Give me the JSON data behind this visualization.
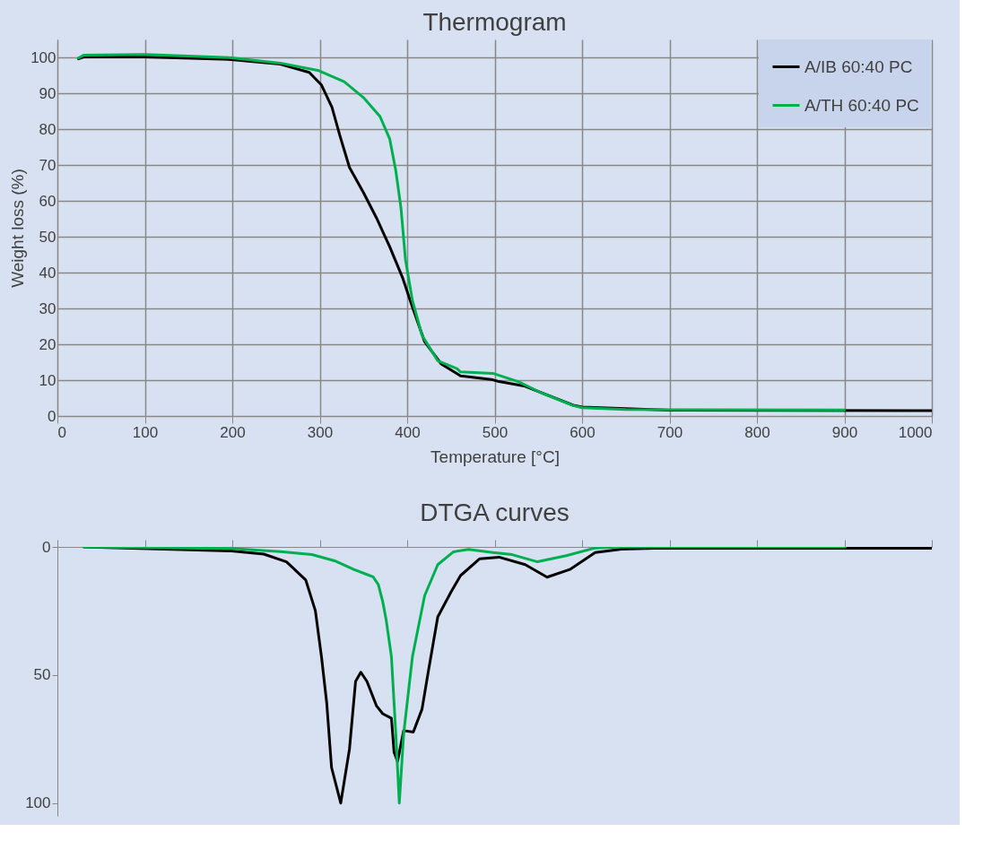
{
  "chart_data": [
    {
      "type": "line",
      "title": "Thermogram",
      "xlabel": "Temperature [°C]",
      "ylabel": "Weight loss (%)",
      "xlim": [
        0,
        1000
      ],
      "xticks": [
        0,
        100,
        200,
        300,
        400,
        500,
        600,
        700,
        800,
        900,
        1000
      ],
      "ylim": [
        0,
        105
      ],
      "yticks": [
        0,
        10,
        20,
        30,
        40,
        50,
        60,
        70,
        80,
        90,
        100
      ],
      "grid": true,
      "legend": "top right",
      "line_style": "solid",
      "series": [
        {
          "name": "A/IB 60:40 PC",
          "color": "#000000",
          "x": [
            24,
            30,
            100,
            199,
            255,
            288,
            302,
            314,
            323,
            334,
            350,
            365,
            380,
            395,
            406,
            420,
            439,
            461,
            468,
            498,
            505,
            535,
            590,
            600,
            700,
            1000
          ],
          "values": [
            99.6,
            100.1,
            100.1,
            99.4,
            98.1,
            95.8,
            92.3,
            86.1,
            78.2,
            69.3,
            62.3,
            55.2,
            47.2,
            38.4,
            30.4,
            20.7,
            14.5,
            11.2,
            11,
            10.1,
            9.6,
            8.3,
            3,
            2.5,
            1.6,
            1.5
          ]
        },
        {
          "name": "A/TH 60:40 PC",
          "color": "#00b050",
          "x": [
            24,
            30,
            100,
            199,
            255,
            299,
            328,
            350,
            369,
            380,
            387,
            393,
            398,
            406,
            417,
            435,
            457,
            461,
            498,
            527,
            553,
            590,
            600,
            650,
            900
          ],
          "values": [
            99.8,
            100.6,
            100.8,
            99.9,
            98.4,
            96.3,
            93.2,
            88.8,
            83.5,
            77.3,
            68.4,
            57.8,
            43.7,
            32.2,
            22.5,
            15.4,
            13.2,
            12.3,
            11.9,
            9.6,
            6.5,
            2.9,
            2.3,
            1.8,
            1.7
          ]
        }
      ]
    },
    {
      "type": "line",
      "title": "DTGA curves",
      "xlim": [
        0,
        1000
      ],
      "xticks": [
        0,
        100,
        200,
        300,
        400,
        500,
        600,
        700,
        800,
        900,
        1000
      ],
      "ylim": [
        105,
        0
      ],
      "yticks": [
        0,
        50,
        100
      ],
      "grid": false,
      "legend": false,
      "tick_labels": "y",
      "line_style": "solid",
      "series": [
        {
          "color": "#000000",
          "x": [
            30,
            199,
            236,
            262,
            284,
            295,
            302,
            308,
            313.5,
            324,
            334,
            341,
            347,
            354,
            365,
            372,
            382,
            385,
            389,
            396,
            407,
            417,
            424,
            435,
            450,
            461,
            483,
            505,
            535,
            560,
            586,
            615,
            645,
            682,
            1000
          ],
          "values": [
            0,
            1.6,
            2.8,
            5.8,
            12.9,
            24.9,
            42.9,
            60.9,
            86.1,
            100,
            78.9,
            52.5,
            48.9,
            52.5,
            62.1,
            65.1,
            66.9,
            80.1,
            83.7,
            71.7,
            72.3,
            63.3,
            49,
            27.3,
            17.7,
            11.2,
            4.6,
            4,
            6.9,
            11.8,
            8.8,
            2.2,
            0.9,
            0.5,
            0.5
          ]
        },
        {
          "color": "#00b050",
          "x": [
            30,
            199,
            255,
            291,
            317,
            339,
            352,
            361,
            367,
            372,
            376,
            382,
            387,
            391,
            396,
            406,
            420,
            435,
            453,
            470,
            498,
            520,
            549,
            582,
            615,
            645,
            901
          ],
          "values": [
            0,
            0.6,
            1.8,
            3,
            5.4,
            8.8,
            10.5,
            11.7,
            14.7,
            21.3,
            28.5,
            42.9,
            72.9,
            100,
            72.9,
            42.9,
            19,
            6.9,
            1.9,
            1,
            2.2,
            3,
            5.8,
            3.4,
            0.4,
            0,
            0
          ]
        }
      ]
    }
  ]
}
